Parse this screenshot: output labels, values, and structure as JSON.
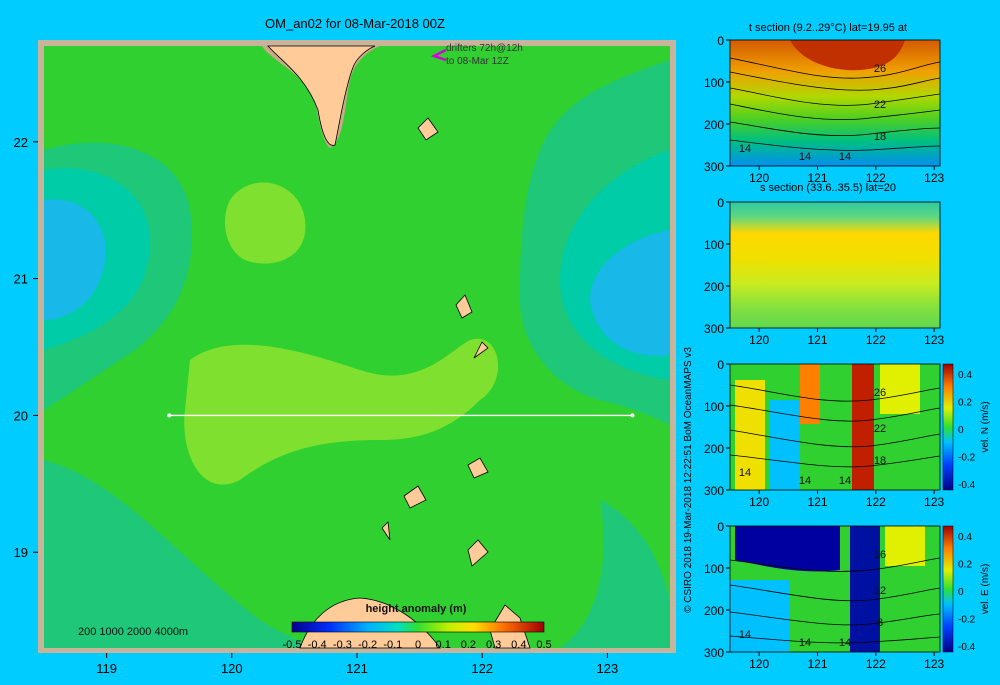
{
  "title": "OM_an02 for 08-Mar-2018 00Z",
  "drifters": {
    "line1": "drifters 72h@12h",
    "line2": "to 08-Mar 12Z"
  },
  "credit": "© CSIRO 2018   19-Mar-2018 12:22:51 BoM OceanMAPS v3",
  "bathy_legend": "200  1000  2000  4000m",
  "colors": {
    "background": "#00ccff",
    "land": "#ffcc99",
    "shelf": "#c8aa88",
    "frame": "#c8b49b",
    "transect": "#ffffff",
    "drifter": "#d900d9"
  },
  "chart_data": [
    {
      "type": "heatmap",
      "name": "map",
      "title": "OM_an02 for 08-Mar-2018 00Z",
      "x_ticks": [
        "119",
        "120",
        "121",
        "122",
        "123"
      ],
      "y_ticks": [
        "22",
        "21",
        "20",
        "19"
      ],
      "xlim": [
        118.5,
        123.5
      ],
      "ylim": [
        18.3,
        22.7
      ],
      "transect": {
        "lat": 20,
        "lon": [
          119.5,
          123.2
        ]
      },
      "colorbar": {
        "label": "height anomaly  (m)",
        "ticks": [
          "-0.5",
          "-0.4",
          "-0.3",
          "-0.2",
          "-0.1",
          "0",
          "0.1",
          "0.2",
          "0.3",
          "0.4",
          "0.5"
        ],
        "range": [
          -0.5,
          0.5
        ]
      }
    },
    {
      "type": "heatmap",
      "name": "temperature-section",
      "title": "t section (9.2..29°C) lat=19.95 at",
      "x_ticks": [
        "120",
        "121",
        "122",
        "123"
      ],
      "y_ticks": [
        "0",
        "100",
        "200",
        "300"
      ],
      "contour_labels": [
        "26",
        "22",
        "18",
        "14",
        "14",
        "14"
      ]
    },
    {
      "type": "heatmap",
      "name": "salinity-section",
      "title": "s section (33.6..35.5) lat=20",
      "x_ticks": [
        "120",
        "121",
        "122",
        "123"
      ],
      "y_ticks": [
        "0",
        "100",
        "200",
        "300"
      ]
    },
    {
      "type": "heatmap",
      "name": "velocity-north-section",
      "x_ticks": [
        "120",
        "121",
        "122",
        "123"
      ],
      "y_ticks": [
        "0",
        "100",
        "200",
        "300"
      ],
      "contour_labels": [
        "26",
        "22",
        "18",
        "14",
        "14",
        "14"
      ],
      "colorbar": {
        "label": "vel. N  (m/s)",
        "ticks": [
          "0.4",
          "0.2",
          "0",
          "-0.2",
          "-0.4"
        ]
      }
    },
    {
      "type": "heatmap",
      "name": "velocity-east-section",
      "x_ticks": [
        "120",
        "121",
        "122",
        "123"
      ],
      "y_ticks": [
        "0",
        "100",
        "200",
        "300"
      ],
      "contour_labels": [
        "16",
        "12",
        "8",
        "14",
        "14",
        "14"
      ],
      "colorbar": {
        "label": "vel. E  (m/s)",
        "ticks": [
          "0.4",
          "0.2",
          "0",
          "-0.2",
          "-0.4"
        ]
      }
    }
  ]
}
